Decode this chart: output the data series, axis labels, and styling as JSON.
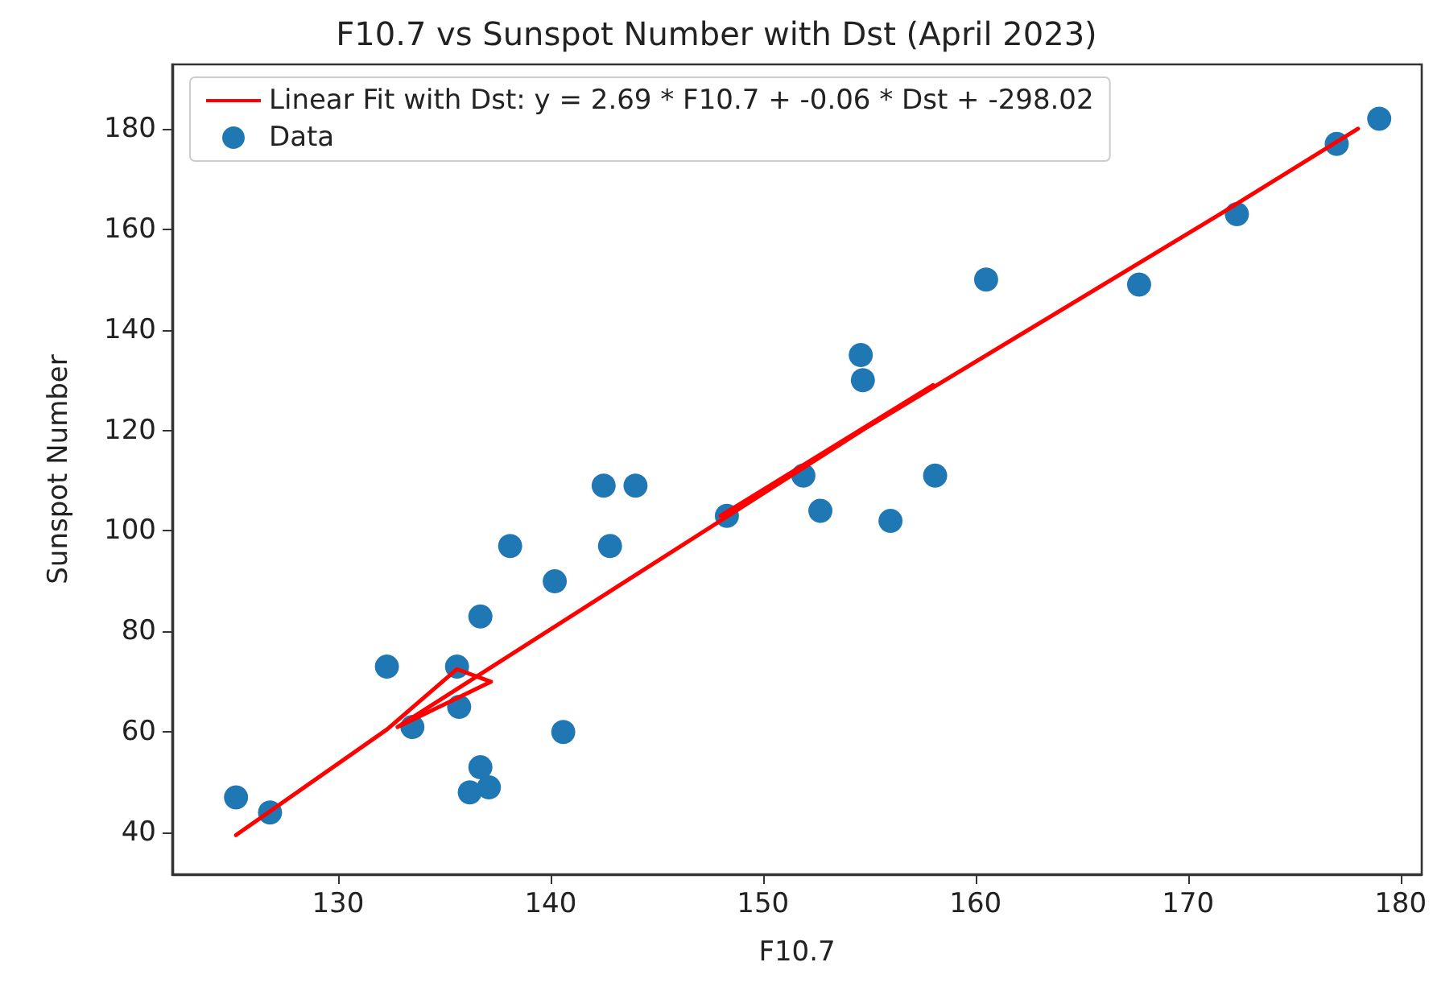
{
  "chart_data": {
    "type": "scatter",
    "title": "F10.7 vs Sunspot Number with Dst (April 2023)",
    "xlabel": "F10.7",
    "ylabel": "Sunspot Number",
    "xlim": [
      122.2,
      181
    ],
    "xticks": [
      130,
      140,
      150,
      160,
      170,
      180
    ],
    "ylim": [
      31.7,
      192.8
    ],
    "yticks": [
      40,
      60,
      80,
      100,
      120,
      140,
      160,
      180
    ],
    "grid": false,
    "legend": "top",
    "series": [
      {
        "name": "Linear Fit with Dst: y = 2.69 * F10.7 + -0.06 * Dst + -298.02",
        "type": "line",
        "color": "#ff0000",
        "line_style": "solid",
        "x": [
          125.2,
          132.3,
          135.6,
          137.2,
          132.8,
          158,
          148,
          171.5,
          178
        ],
        "values": [
          39.5,
          60.5,
          72.5,
          70,
          61,
          129,
          103,
          163,
          180
        ]
      },
      {
        "name": "Data",
        "marker": "circle",
        "color": "#1f77b4",
        "x": [
          125.2,
          126.8,
          132.3,
          133.5,
          135.6,
          135.7,
          136.2,
          136.7,
          136.7,
          137.1,
          138.1,
          140.2,
          140.6,
          142.5,
          142.8,
          144,
          148.3,
          151.9,
          152.7,
          154.6,
          154.7,
          156,
          158.1,
          160.5,
          167.7,
          172.3,
          177,
          179
        ],
        "values": [
          47,
          44,
          73,
          61,
          73,
          65,
          48,
          53,
          83,
          49,
          97,
          90,
          60,
          109,
          97,
          109,
          103,
          111,
          104,
          135,
          130,
          102,
          111,
          150,
          149,
          163,
          177,
          182
        ]
      }
    ]
  }
}
